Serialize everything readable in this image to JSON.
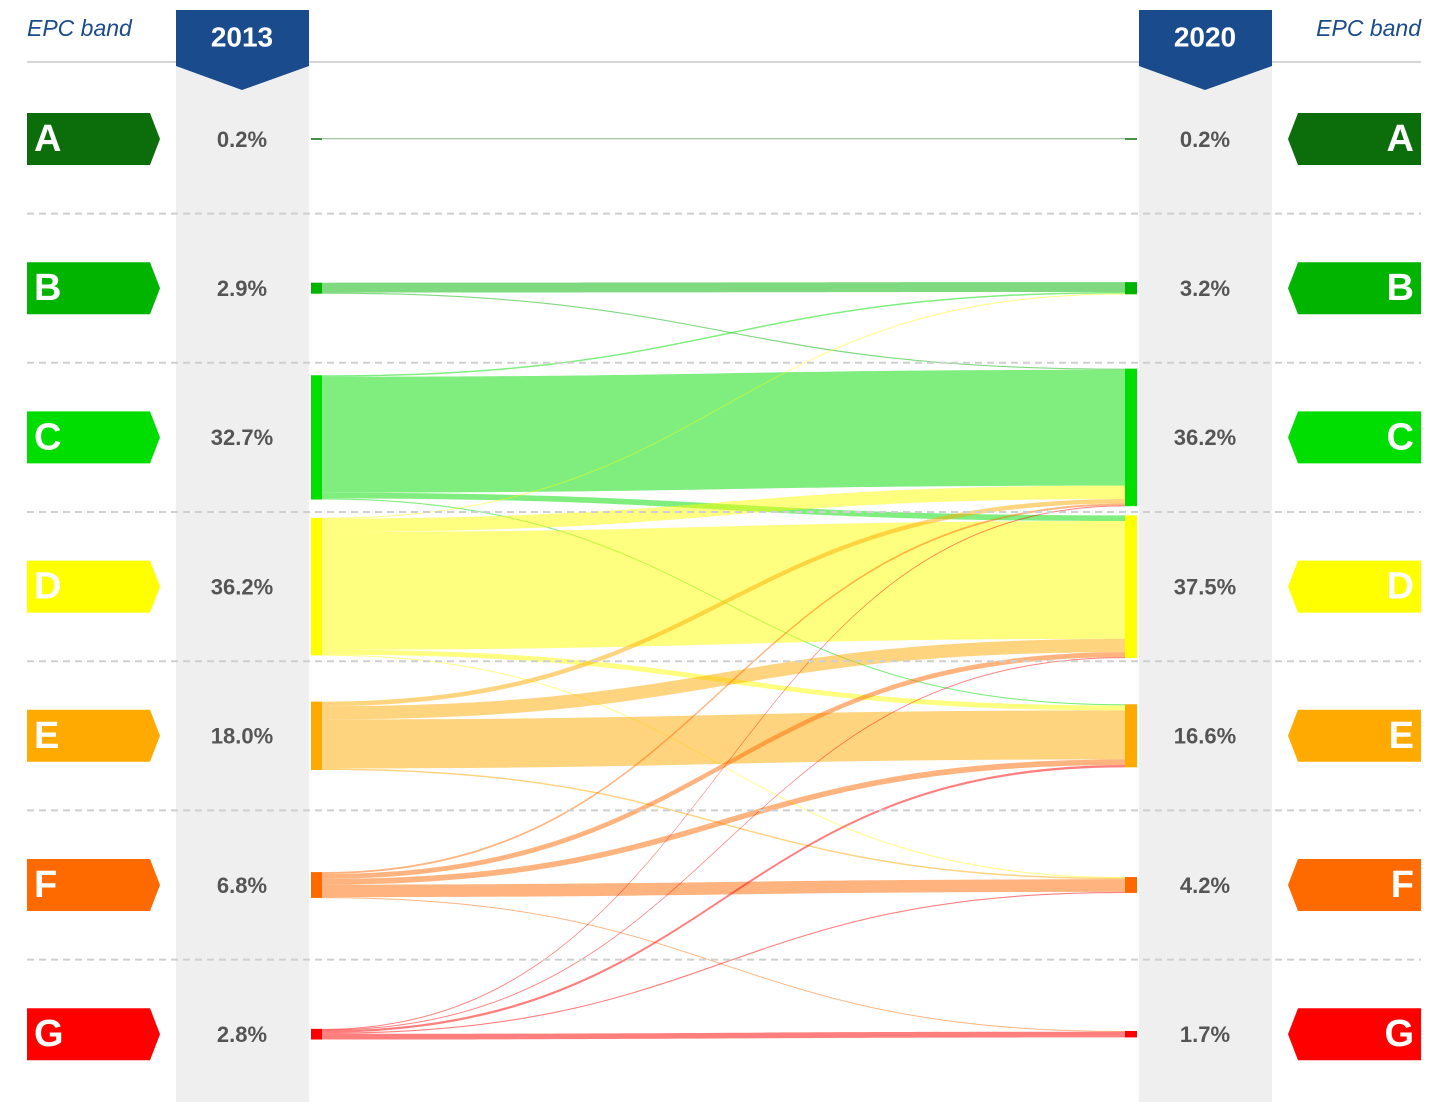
{
  "chart_data": {
    "type": "sankey",
    "axis_label": "EPC band",
    "categories": [
      "A",
      "B",
      "C",
      "D",
      "E",
      "F",
      "G"
    ],
    "colors": [
      "#0b6e0b",
      "#00b400",
      "#00dd00",
      "#ffff00",
      "#ffaa00",
      "#ff6a00",
      "#ff0000"
    ],
    "series": [
      {
        "name": "2013",
        "values": [
          0.2,
          2.9,
          32.7,
          36.2,
          18.0,
          6.8,
          2.8
        ],
        "value_labels": [
          "0.2%",
          "2.9%",
          "32.7%",
          "36.2%",
          "18.0%",
          "6.8%",
          "2.8%"
        ]
      },
      {
        "name": "2020",
        "values": [
          0.2,
          3.2,
          36.2,
          37.5,
          16.6,
          4.2,
          1.7
        ],
        "value_labels": [
          "0.2%",
          "3.2%",
          "36.2%",
          "37.5%",
          "16.6%",
          "4.2%",
          "1.7%"
        ]
      }
    ],
    "flows": [
      {
        "source": "A",
        "target": "A",
        "value": 0.2
      },
      {
        "source": "B",
        "target": "B",
        "value": 2.6
      },
      {
        "source": "B",
        "target": "C",
        "value": 0.3
      },
      {
        "source": "C",
        "target": "B",
        "value": 0.4
      },
      {
        "source": "C",
        "target": "C",
        "value": 30.5
      },
      {
        "source": "C",
        "target": "D",
        "value": 1.5
      },
      {
        "source": "C",
        "target": "E",
        "value": 0.3
      },
      {
        "source": "D",
        "target": "B",
        "value": 0.2
      },
      {
        "source": "D",
        "target": "C",
        "value": 3.5
      },
      {
        "source": "D",
        "target": "D",
        "value": 31.0
      },
      {
        "source": "D",
        "target": "E",
        "value": 1.3
      },
      {
        "source": "D",
        "target": "F",
        "value": 0.2
      },
      {
        "source": "E",
        "target": "C",
        "value": 1.2
      },
      {
        "source": "E",
        "target": "D",
        "value": 3.5
      },
      {
        "source": "E",
        "target": "E",
        "value": 12.9
      },
      {
        "source": "E",
        "target": "F",
        "value": 0.4
      },
      {
        "source": "F",
        "target": "C",
        "value": 0.5
      },
      {
        "source": "F",
        "target": "D",
        "value": 1.3
      },
      {
        "source": "F",
        "target": "E",
        "value": 1.5
      },
      {
        "source": "F",
        "target": "F",
        "value": 3.3
      },
      {
        "source": "F",
        "target": "G",
        "value": 0.2
      },
      {
        "source": "G",
        "target": "C",
        "value": 0.2
      },
      {
        "source": "G",
        "target": "D",
        "value": 0.2
      },
      {
        "source": "G",
        "target": "E",
        "value": 0.6
      },
      {
        "source": "G",
        "target": "F",
        "value": 0.3
      },
      {
        "source": "G",
        "target": "G",
        "value": 1.5
      }
    ]
  }
}
